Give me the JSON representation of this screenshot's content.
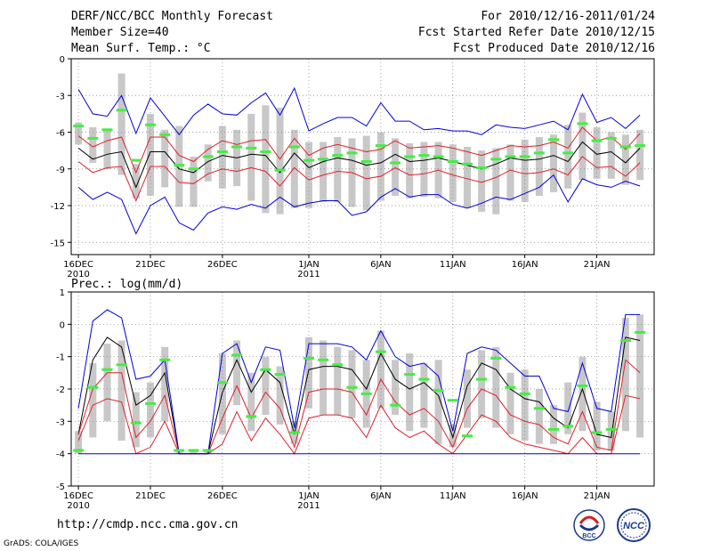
{
  "header": {
    "title": "DERF/NCC/BCC Monthly Forecast",
    "member_size": "Member Size=40",
    "variable": "Mean Surf. Temp.: °C",
    "forecast_period": "For 2010/12/16-2011/01/24",
    "started_date": "Fcst Started Refer Date 2010/12/15",
    "produced_date": "Fcst Produced Date 2010/12/16"
  },
  "footer": {
    "url": "http://cmdp.ncc.cma.gov.cn",
    "credit": "GrADS: COLA/IGES",
    "logo_left_text": "BCC",
    "logo_right_text": "NCC"
  },
  "colors": {
    "box": "#c8c8c8",
    "mean": "#000000",
    "std": "#e0202a",
    "extreme": "#0000dd",
    "marker": "#44ee44",
    "grid": "#808080"
  },
  "chart_data": [
    {
      "type": "line",
      "name": "temperature",
      "title": "Mean Surf. Temp.: °C",
      "ylabel": "°C",
      "ylim": [
        -16,
        0
      ],
      "yticks": [
        0,
        -3,
        -6,
        -9,
        -12,
        -15
      ],
      "x": [
        1,
        2,
        3,
        4,
        5,
        6,
        7,
        8,
        9,
        10,
        11,
        12,
        13,
        14,
        15,
        16,
        17,
        18,
        19,
        20,
        21,
        22,
        23,
        24,
        25,
        26,
        27,
        28,
        29,
        30,
        31,
        32,
        33,
        34,
        35,
        36,
        37,
        38,
        39,
        40
      ],
      "xticks": [
        {
          "day": 1,
          "label": "16DEC",
          "sub": "2010"
        },
        {
          "day": 6,
          "label": "21DEC",
          "sub": ""
        },
        {
          "day": 11,
          "label": "26DEC",
          "sub": ""
        },
        {
          "day": 17,
          "label": "1JAN",
          "sub": "2011"
        },
        {
          "day": 22,
          "label": "6JAN",
          "sub": ""
        },
        {
          "day": 27,
          "label": "11JAN",
          "sub": ""
        },
        {
          "day": 32,
          "label": "16JAN",
          "sub": ""
        },
        {
          "day": 37,
          "label": "21JAN",
          "sub": ""
        }
      ],
      "series": [
        {
          "name": "mean",
          "values": [
            -7.3,
            -8.2,
            -7.8,
            -7.6,
            -10.5,
            -7.6,
            -7.6,
            -9.0,
            -9.3,
            -8.4,
            -7.9,
            -8.1,
            -7.8,
            -7.9,
            -9.3,
            -7.7,
            -8.9,
            -8.4,
            -8.1,
            -8.3,
            -8.7,
            -8.5,
            -7.8,
            -8.4,
            -8.3,
            -8.1,
            -8.4,
            -8.7,
            -9.0,
            -8.6,
            -8.1,
            -8.3,
            -8.2,
            -7.9,
            -8.4,
            -6.8,
            -7.8,
            -7.6,
            -8.5,
            -7.3
          ]
        },
        {
          "name": "plus_std",
          "values": [
            -6.3,
            -7.2,
            -6.7,
            -6.4,
            -9.3,
            -6.4,
            -6.4,
            -7.9,
            -8.4,
            -7.4,
            -6.7,
            -7.0,
            -6.7,
            -6.6,
            -8.2,
            -6.5,
            -7.9,
            -7.3,
            -7.0,
            -7.3,
            -7.6,
            -7.4,
            -6.7,
            -7.3,
            -7.2,
            -7.1,
            -7.3,
            -7.6,
            -7.9,
            -7.5,
            -7.1,
            -7.2,
            -7.1,
            -6.8,
            -7.3,
            -5.6,
            -6.7,
            -6.4,
            -7.4,
            -6.1
          ]
        },
        {
          "name": "minus_std",
          "values": [
            -8.4,
            -9.3,
            -8.9,
            -8.8,
            -11.6,
            -8.8,
            -8.8,
            -10.1,
            -10.2,
            -9.4,
            -9.0,
            -9.2,
            -8.9,
            -9.2,
            -10.4,
            -8.9,
            -9.9,
            -9.5,
            -9.2,
            -9.3,
            -9.8,
            -9.6,
            -8.9,
            -9.5,
            -9.4,
            -9.1,
            -9.5,
            -9.8,
            -10.1,
            -9.7,
            -9.1,
            -9.4,
            -9.3,
            -9.0,
            -9.5,
            -8.0,
            -8.9,
            -8.8,
            -9.6,
            -8.5
          ]
        },
        {
          "name": "max",
          "values": [
            -2.5,
            -4.5,
            -4.7,
            -3.0,
            -6.1,
            -3.2,
            -4.7,
            -6.2,
            -4.6,
            -3.7,
            -4.5,
            -4.6,
            -3.6,
            -2.8,
            -4.6,
            -2.4,
            -5.9,
            -5.3,
            -4.8,
            -4.8,
            -5.5,
            -3.6,
            -5.1,
            -5.1,
            -5.8,
            -5.7,
            -5.9,
            -5.9,
            -6.2,
            -5.4,
            -5.6,
            -5.7,
            -5.4,
            -5.1,
            -5.8,
            -2.9,
            -5.2,
            -4.8,
            -5.7,
            -4.6
          ]
        },
        {
          "name": "min",
          "values": [
            -10.5,
            -11.5,
            -10.9,
            -11.5,
            -14.3,
            -12.0,
            -11.3,
            -13.4,
            -14.0,
            -12.6,
            -12.1,
            -12.3,
            -11.9,
            -12.2,
            -11.3,
            -12.1,
            -11.8,
            -11.6,
            -11.6,
            -12.8,
            -12.5,
            -11.3,
            -10.6,
            -11.3,
            -11.1,
            -11.1,
            -11.9,
            -12.2,
            -11.8,
            -11.3,
            -11.5,
            -11.0,
            -10.5,
            -9.5,
            -11.7,
            -9.8,
            -10.3,
            -10.5,
            -10.0,
            -10.4
          ]
        },
        {
          "name": "deterministic",
          "values": [
            -5.5,
            -6.5,
            -5.8,
            -4.2,
            -8.3,
            -5.4,
            -6.2,
            -8.7,
            -9.0,
            -8.0,
            -7.6,
            -7.2,
            -7.3,
            -7.6,
            -9.1,
            -7.2,
            -8.3,
            -8.2,
            -7.9,
            -7.7,
            -8.4,
            -7.1,
            -8.5,
            -8.0,
            -7.9,
            -8.0,
            -8.4,
            -8.6,
            -8.9,
            -8.2,
            -8.0,
            -8.0,
            -7.7,
            -6.6,
            -7.7,
            -5.3,
            -6.7,
            -6.5,
            -7.2,
            -7.1
          ]
        }
      ],
      "boxes": [
        {
          "low": -7.0,
          "high": -5.2
        },
        {
          "low": -8.5,
          "high": -5.6
        },
        {
          "low": -9.0,
          "high": -5.7
        },
        {
          "low": -9.5,
          "high": -1.2
        },
        {
          "low": -11.4,
          "high": -8.6
        },
        {
          "low": -11.2,
          "high": -4.5
        },
        {
          "low": -10.5,
          "high": -5.8
        },
        {
          "low": -12.1,
          "high": -5.5
        },
        {
          "low": -12.1,
          "high": -8.0
        },
        {
          "low": -10.0,
          "high": -7.0
        },
        {
          "low": -10.6,
          "high": -5.5
        },
        {
          "low": -10.4,
          "high": -5.8
        },
        {
          "low": -11.6,
          "high": -4.5
        },
        {
          "low": -12.6,
          "high": -3.8
        },
        {
          "low": -12.7,
          "high": -4.0
        },
        {
          "low": -12.2,
          "high": -5.8
        },
        {
          "low": -12.2,
          "high": -6.8
        },
        {
          "low": -11.7,
          "high": -6.8
        },
        {
          "low": -11.7,
          "high": -6.4
        },
        {
          "low": -12.1,
          "high": -6.5
        },
        {
          "low": -12.4,
          "high": -6.3
        },
        {
          "low": -11.6,
          "high": -6.0
        },
        {
          "low": -11.2,
          "high": -6.5
        },
        {
          "low": -11.4,
          "high": -6.9
        },
        {
          "low": -11.3,
          "high": -6.8
        },
        {
          "low": -11.4,
          "high": -6.8
        },
        {
          "low": -11.7,
          "high": -7.0
        },
        {
          "low": -12.2,
          "high": -7.2
        },
        {
          "low": -12.5,
          "high": -7.5
        },
        {
          "low": -12.7,
          "high": -7.3
        },
        {
          "low": -11.6,
          "high": -7.0
        },
        {
          "low": -11.7,
          "high": -6.6
        },
        {
          "low": -11.2,
          "high": -6.4
        },
        {
          "low": -10.9,
          "high": -6.2
        },
        {
          "low": -10.6,
          "high": -5.4
        },
        {
          "low": -9.9,
          "high": -4.4
        },
        {
          "low": -9.8,
          "high": -5.6
        },
        {
          "low": -9.8,
          "high": -6.0
        },
        {
          "low": -10.3,
          "high": -6.2
        },
        {
          "low": -9.9,
          "high": -5.8
        }
      ]
    },
    {
      "type": "line",
      "name": "precipitation",
      "title": "Prec.: log(mm/d)",
      "ylabel": "log(mm/d)",
      "ylim": [
        -5,
        1
      ],
      "yticks": [
        1,
        0,
        -1,
        -2,
        -3,
        -4,
        -5
      ],
      "x": [
        1,
        2,
        3,
        4,
        5,
        6,
        7,
        8,
        9,
        10,
        11,
        12,
        13,
        14,
        15,
        16,
        17,
        18,
        19,
        20,
        21,
        22,
        23,
        24,
        25,
        26,
        27,
        28,
        29,
        30,
        31,
        32,
        33,
        34,
        35,
        36,
        37,
        38,
        39,
        40
      ],
      "xticks": [
        {
          "day": 1,
          "label": "16DEC",
          "sub": "2010"
        },
        {
          "day": 6,
          "label": "21DEC",
          "sub": ""
        },
        {
          "day": 11,
          "label": "26DEC",
          "sub": ""
        },
        {
          "day": 17,
          "label": "1JAN",
          "sub": "2011"
        },
        {
          "day": 22,
          "label": "6JAN",
          "sub": ""
        },
        {
          "day": 27,
          "label": "11JAN",
          "sub": ""
        },
        {
          "day": 32,
          "label": "16JAN",
          "sub": ""
        },
        {
          "day": 37,
          "label": "21JAN",
          "sub": ""
        }
      ],
      "series": [
        {
          "name": "mean",
          "values": [
            -3.4,
            -1.1,
            -0.4,
            -0.7,
            -2.5,
            -2.2,
            -1.5,
            -4.0,
            -4.0,
            -4.0,
            -2.1,
            -1.1,
            -2.1,
            -1.4,
            -1.8,
            -3.4,
            -1.4,
            -1.3,
            -1.3,
            -1.4,
            -2.0,
            -0.9,
            -1.7,
            -2.0,
            -1.8,
            -2.2,
            -3.5,
            -1.9,
            -1.2,
            -1.4,
            -2.0,
            -2.3,
            -2.4,
            -2.9,
            -3.2,
            -2.0,
            -3.4,
            -3.5,
            -0.4,
            -0.5
          ]
        },
        {
          "name": "plus_std",
          "values": [
            -3.4,
            -2.0,
            -1.5,
            -1.5,
            -3.5,
            -3.0,
            -2.2,
            -4.0,
            -4.0,
            -4.0,
            -2.9,
            -1.9,
            -2.9,
            -2.1,
            -2.6,
            -3.8,
            -2.1,
            -2.0,
            -2.0,
            -2.1,
            -2.8,
            -1.7,
            -2.4,
            -2.8,
            -2.6,
            -3.0,
            -3.8,
            -2.6,
            -2.0,
            -2.2,
            -2.8,
            -3.0,
            -3.1,
            -3.5,
            -3.7,
            -2.7,
            -3.8,
            -3.9,
            -1.1,
            -1.5
          ]
        },
        {
          "name": "minus_std",
          "values": [
            -3.6,
            -2.5,
            -2.3,
            -2.4,
            -4.0,
            -3.8,
            -3.0,
            -4.0,
            -4.0,
            -4.0,
            -3.7,
            -2.7,
            -3.6,
            -2.9,
            -3.4,
            -4.0,
            -2.9,
            -2.8,
            -2.8,
            -2.9,
            -3.5,
            -2.5,
            -3.2,
            -3.5,
            -3.3,
            -3.7,
            -4.0,
            -3.4,
            -2.8,
            -3.0,
            -3.5,
            -3.7,
            -3.8,
            -3.9,
            -4.0,
            -3.5,
            -4.0,
            -4.0,
            -2.2,
            -2.3
          ]
        },
        {
          "name": "max",
          "values": [
            -2.6,
            0.1,
            0.45,
            0.2,
            -1.7,
            -1.6,
            -1.1,
            -4.0,
            -4.0,
            -4.0,
            -0.9,
            -0.6,
            -1.8,
            -0.7,
            -0.8,
            -3.2,
            -0.6,
            -0.6,
            -0.6,
            -0.7,
            -1.1,
            -0.2,
            -1.0,
            -1.3,
            -1.2,
            -1.6,
            -3.3,
            -0.9,
            -0.7,
            -0.8,
            -1.2,
            -1.6,
            -1.6,
            -2.6,
            -2.7,
            -1.2,
            -2.6,
            -2.7,
            0.3,
            0.3
          ]
        },
        {
          "name": "min",
          "values": [
            -4.0,
            -4.0,
            -4.0,
            -4.0,
            -4.0,
            -4.0,
            -4.0,
            -4.0,
            -4.0,
            -4.0,
            -4.0,
            -4.0,
            -4.0,
            -4.0,
            -4.0,
            -4.0,
            -4.0,
            -4.0,
            -4.0,
            -4.0,
            -4.0,
            -4.0,
            -4.0,
            -4.0,
            -4.0,
            -4.0,
            -4.0,
            -4.0,
            -4.0,
            -4.0,
            -4.0,
            -4.0,
            -4.0,
            -4.0,
            -4.0,
            -4.0,
            -4.0,
            -4.0,
            -4.0,
            -4.0
          ]
        },
        {
          "name": "deterministic",
          "values": [
            -3.9,
            -1.95,
            -1.4,
            -1.25,
            -3.05,
            -2.45,
            -1.1,
            -3.9,
            -3.9,
            -3.9,
            -1.8,
            -0.95,
            -2.85,
            -1.4,
            -1.55,
            -3.35,
            -1.05,
            -1.1,
            -1.25,
            -1.95,
            -2.15,
            -0.85,
            -2.5,
            -1.55,
            -1.7,
            -2.05,
            -2.35,
            -3.45,
            -1.7,
            -1.05,
            -1.95,
            -2.15,
            -2.6,
            -3.25,
            -3.15,
            -1.9,
            -3.35,
            -3.25,
            -0.5,
            -0.25
          ]
        }
      ],
      "boxes": [
        {
          "low": -4.0,
          "high": -3.3
        },
        {
          "low": -3.5,
          "high": -1.2
        },
        {
          "low": -3.0,
          "high": -0.6
        },
        {
          "low": -3.6,
          "high": -0.5
        },
        {
          "low": -3.8,
          "high": -2.1
        },
        {
          "low": -3.5,
          "high": -1.8
        },
        {
          "low": -3.0,
          "high": -0.7
        },
        {
          "low": -4.0,
          "high": -3.9
        },
        {
          "low": -4.0,
          "high": -3.9
        },
        {
          "low": -4.0,
          "high": -3.9
        },
        {
          "low": -3.4,
          "high": -0.9
        },
        {
          "low": -2.5,
          "high": -0.5
        },
        {
          "low": -3.3,
          "high": -1.5
        },
        {
          "low": -2.8,
          "high": -1.0
        },
        {
          "low": -3.1,
          "high": -1.3
        },
        {
          "low": -3.7,
          "high": -3.0
        },
        {
          "low": -2.6,
          "high": -0.4
        },
        {
          "low": -2.8,
          "high": -0.5
        },
        {
          "low": -2.8,
          "high": -0.7
        },
        {
          "low": -2.9,
          "high": -0.8
        },
        {
          "low": -3.2,
          "high": -1.1
        },
        {
          "low": -2.6,
          "high": -0.2
        },
        {
          "low": -2.8,
          "high": -1.1
        },
        {
          "low": -3.3,
          "high": -0.9
        },
        {
          "low": -3.2,
          "high": -1.2
        },
        {
          "low": -3.7,
          "high": -1.1
        },
        {
          "low": -3.8,
          "high": -3.1
        },
        {
          "low": -3.2,
          "high": -1.4
        },
        {
          "low": -2.9,
          "high": -0.8
        },
        {
          "low": -3.2,
          "high": -0.7
        },
        {
          "low": -3.4,
          "high": -1.5
        },
        {
          "low": -3.6,
          "high": -1.4
        },
        {
          "low": -3.7,
          "high": -2.0
        },
        {
          "low": -3.7,
          "high": -2.5
        },
        {
          "low": -3.4,
          "high": -1.8
        },
        {
          "low": -3.3,
          "high": -1.0
        },
        {
          "low": -3.9,
          "high": -2.4
        },
        {
          "low": -3.9,
          "high": -2.7
        },
        {
          "low": -3.3,
          "high": 0.2
        },
        {
          "low": -3.5,
          "high": 0.3
        }
      ]
    }
  ]
}
